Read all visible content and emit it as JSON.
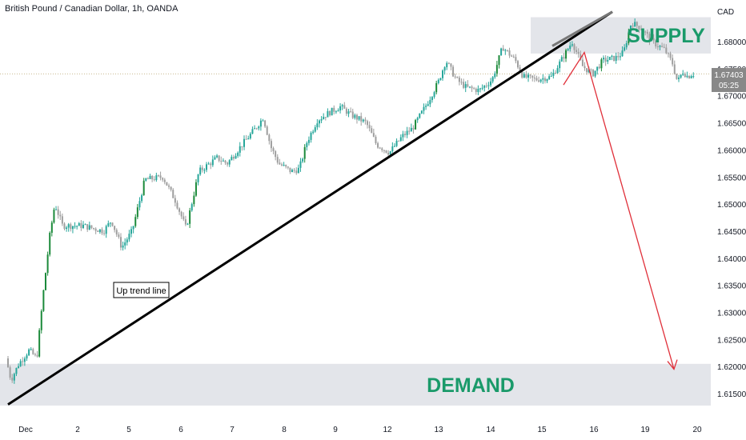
{
  "header": {
    "title": "British Pound / Canadian Dollar, 1h, OANDA"
  },
  "axis": {
    "currency": "CAD",
    "y_ticks": [
      "1.68000",
      "1.67500",
      "1.67000",
      "1.66500",
      "1.66000",
      "1.65500",
      "1.65000",
      "1.64500",
      "1.64000",
      "1.63500",
      "1.63000",
      "1.62500",
      "1.62000",
      "1.61500"
    ],
    "x_ticks": [
      "Dec",
      "2",
      "5",
      "6",
      "7",
      "8",
      "9",
      "12",
      "13",
      "14",
      "15",
      "16",
      "19",
      "20"
    ]
  },
  "price_marker": {
    "value": "1.67403",
    "countdown": "05:25"
  },
  "zones": {
    "supply": "SUPPLY",
    "demand": "DEMAND"
  },
  "annotations": {
    "trendline": "Up trend line"
  },
  "colors": {
    "up": "#26a69a",
    "up_dark": "#1b8a3a",
    "down": "#9e9e9e",
    "zone_fill": "#e3e5ea",
    "zone_text": "#1a9a6a",
    "trendline": "#000000",
    "arrow": "#e0303a",
    "price_line": "#c9b98e"
  },
  "chart_data": {
    "type": "candlestick",
    "symbol": "GBPCAD",
    "timeframe": "1h",
    "y_range": [
      1.6125,
      1.6815
    ],
    "last_price": 1.67403,
    "path": [
      {
        "d": 0.0,
        "p": 1.6215
      },
      {
        "d": 0.1,
        "p": 1.6175
      },
      {
        "d": 0.25,
        "p": 1.6205
      },
      {
        "d": 0.45,
        "p": 1.623
      },
      {
        "d": 0.6,
        "p": 1.6215
      },
      {
        "d": 0.72,
        "p": 1.633
      },
      {
        "d": 0.85,
        "p": 1.644
      },
      {
        "d": 0.95,
        "p": 1.65
      },
      {
        "d": 1.1,
        "p": 1.646
      },
      {
        "d": 1.5,
        "p": 1.646
      },
      {
        "d": 1.9,
        "p": 1.645
      },
      {
        "d": 2.05,
        "p": 1.647
      },
      {
        "d": 2.25,
        "p": 1.642
      },
      {
        "d": 2.45,
        "p": 1.645
      },
      {
        "d": 2.7,
        "p": 1.6545
      },
      {
        "d": 3.05,
        "p": 1.655
      },
      {
        "d": 3.3,
        "p": 1.6505
      },
      {
        "d": 3.5,
        "p": 1.6455
      },
      {
        "d": 3.75,
        "p": 1.656
      },
      {
        "d": 4.1,
        "p": 1.6585
      },
      {
        "d": 4.3,
        "p": 1.6575
      },
      {
        "d": 4.55,
        "p": 1.6605
      },
      {
        "d": 4.85,
        "p": 1.664
      },
      {
        "d": 5.0,
        "p": 1.666
      },
      {
        "d": 5.15,
        "p": 1.6605
      },
      {
        "d": 5.3,
        "p": 1.6575
      },
      {
        "d": 5.55,
        "p": 1.656
      },
      {
        "d": 5.7,
        "p": 1.6565
      },
      {
        "d": 5.85,
        "p": 1.6615
      },
      {
        "d": 6.05,
        "p": 1.6655
      },
      {
        "d": 6.3,
        "p": 1.667
      },
      {
        "d": 6.5,
        "p": 1.668
      },
      {
        "d": 6.7,
        "p": 1.6665
      },
      {
        "d": 7.0,
        "p": 1.665
      },
      {
        "d": 7.2,
        "p": 1.661
      },
      {
        "d": 7.45,
        "p": 1.6595
      },
      {
        "d": 7.7,
        "p": 1.6625
      },
      {
        "d": 7.9,
        "p": 1.664
      },
      {
        "d": 8.15,
        "p": 1.668
      },
      {
        "d": 8.4,
        "p": 1.6725
      },
      {
        "d": 8.55,
        "p": 1.6765
      },
      {
        "d": 8.75,
        "p": 1.673
      },
      {
        "d": 8.95,
        "p": 1.6715
      },
      {
        "d": 9.2,
        "p": 1.671
      },
      {
        "d": 9.45,
        "p": 1.673
      },
      {
        "d": 9.65,
        "p": 1.679
      },
      {
        "d": 9.9,
        "p": 1.6765
      },
      {
        "d": 10.05,
        "p": 1.6735
      },
      {
        "d": 10.3,
        "p": 1.673
      },
      {
        "d": 10.6,
        "p": 1.6735
      },
      {
        "d": 10.85,
        "p": 1.6775
      },
      {
        "d": 11.0,
        "p": 1.68
      },
      {
        "d": 11.2,
        "p": 1.6755
      },
      {
        "d": 11.4,
        "p": 1.674
      },
      {
        "d": 11.6,
        "p": 1.6765
      },
      {
        "d": 11.85,
        "p": 1.677
      },
      {
        "d": 12.0,
        "p": 1.678
      },
      {
        "d": 12.15,
        "p": 1.6835
      },
      {
        "d": 12.35,
        "p": 1.6825
      },
      {
        "d": 12.55,
        "p": 1.68
      },
      {
        "d": 12.8,
        "p": 1.6785
      },
      {
        "d": 12.95,
        "p": 1.676
      },
      {
        "d": 13.05,
        "p": 1.6725
      },
      {
        "d": 13.15,
        "p": 1.6745
      },
      {
        "d": 13.25,
        "p": 1.6735
      },
      {
        "d": 13.32,
        "p": 1.67403
      }
    ],
    "trendline": {
      "from": {
        "d": 0.0,
        "p": 1.613
      },
      "to": {
        "d": 15.3,
        "p": 1.6855
      }
    },
    "supply_zone": {
      "from": 1.6778,
      "to": 1.6845
    },
    "demand_zone": {
      "from": 1.6128,
      "to": 1.6205
    },
    "projection": [
      {
        "d": 13.35,
        "p": 1.672
      },
      {
        "d": 13.85,
        "p": 1.678
      },
      {
        "d": 15.75,
        "p": 1.6195
      }
    ]
  }
}
